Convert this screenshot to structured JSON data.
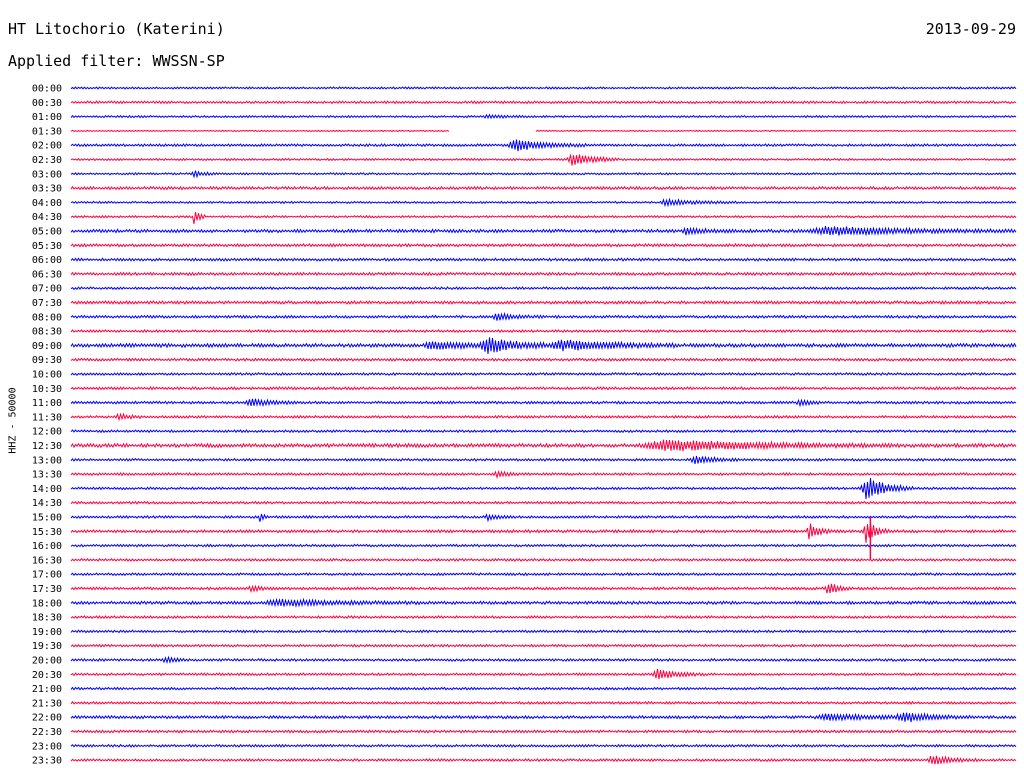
{
  "header": {
    "station": "HT Litochorio (Katerini)",
    "date": "2013-09-29",
    "filter": "Applied filter: WWSSN-SP"
  },
  "chart_data": {
    "type": "line",
    "title": "HT Litochorio (Katerini)",
    "ylabel": "HHZ - 50000",
    "xlabel": "",
    "colors": [
      "#0000ff",
      "#ff0040"
    ],
    "rows": [
      {
        "label": "00:00",
        "base": 1.0,
        "events": []
      },
      {
        "label": "00:30",
        "base": 1.2,
        "events": []
      },
      {
        "label": "01:00",
        "base": 1.0,
        "events": [
          {
            "t": 0.44,
            "amp": 1.5,
            "dur": 0.02
          }
        ]
      },
      {
        "label": "01:30",
        "base": 0.6,
        "events": [],
        "gaps": [
          [
            0.4,
            0.49
          ]
        ]
      },
      {
        "label": "02:00",
        "base": 1.2,
        "events": [
          {
            "t": 0.47,
            "amp": 6,
            "dur": 0.03
          }
        ]
      },
      {
        "label": "02:30",
        "base": 1.0,
        "events": [
          {
            "t": 0.53,
            "amp": 7,
            "dur": 0.02
          }
        ]
      },
      {
        "label": "03:00",
        "base": 1.0,
        "events": [
          {
            "t": 0.13,
            "amp": 3,
            "dur": 0.01
          }
        ]
      },
      {
        "label": "03:30",
        "base": 1.4,
        "events": []
      },
      {
        "label": "04:00",
        "base": 1.0,
        "events": [
          {
            "t": 0.63,
            "amp": 3,
            "dur": 0.03
          }
        ]
      },
      {
        "label": "04:30",
        "base": 1.0,
        "events": [
          {
            "t": 0.13,
            "amp": 9,
            "dur": 0.005
          }
        ]
      },
      {
        "label": "05:00",
        "base": 1.6,
        "events": [
          {
            "t": 0.65,
            "amp": 3,
            "dur": 0.02
          },
          {
            "t": 0.8,
            "amp": 4,
            "dur": 0.08
          }
        ]
      },
      {
        "label": "05:30",
        "base": 1.4,
        "events": []
      },
      {
        "label": "06:00",
        "base": 1.3,
        "events": []
      },
      {
        "label": "06:30",
        "base": 1.4,
        "events": []
      },
      {
        "label": "07:00",
        "base": 1.2,
        "events": []
      },
      {
        "label": "07:30",
        "base": 1.5,
        "events": []
      },
      {
        "label": "08:00",
        "base": 1.3,
        "events": [
          {
            "t": 0.45,
            "amp": 3,
            "dur": 0.02
          }
        ]
      },
      {
        "label": "08:30",
        "base": 1.2,
        "events": []
      },
      {
        "label": "09:00",
        "base": 1.8,
        "events": [
          {
            "t": 0.38,
            "amp": 4,
            "dur": 0.03
          },
          {
            "t": 0.44,
            "amp": 8,
            "dur": 0.03
          },
          {
            "t": 0.52,
            "amp": 5,
            "dur": 0.05
          }
        ]
      },
      {
        "label": "09:30",
        "base": 1.3,
        "events": []
      },
      {
        "label": "10:00",
        "base": 1.2,
        "events": []
      },
      {
        "label": "10:30",
        "base": 1.3,
        "events": []
      },
      {
        "label": "11:00",
        "base": 1.3,
        "events": [
          {
            "t": 0.19,
            "amp": 4,
            "dur": 0.02
          },
          {
            "t": 0.77,
            "amp": 3,
            "dur": 0.01
          }
        ]
      },
      {
        "label": "11:30",
        "base": 1.2,
        "events": [
          {
            "t": 0.05,
            "amp": 3,
            "dur": 0.01
          }
        ]
      },
      {
        "label": "12:00",
        "base": 1.2,
        "events": []
      },
      {
        "label": "12:30",
        "base": 1.8,
        "events": [
          {
            "t": 0.63,
            "amp": 5,
            "dur": 0.1
          }
        ]
      },
      {
        "label": "13:00",
        "base": 1.2,
        "events": [
          {
            "t": 0.66,
            "amp": 4,
            "dur": 0.02
          }
        ]
      },
      {
        "label": "13:30",
        "base": 1.2,
        "events": [
          {
            "t": 0.45,
            "amp": 3,
            "dur": 0.01
          }
        ]
      },
      {
        "label": "14:00",
        "base": 1.2,
        "events": [
          {
            "t": 0.84,
            "amp": 12,
            "dur": 0.02
          }
        ]
      },
      {
        "label": "14:30",
        "base": 1.2,
        "events": []
      },
      {
        "label": "15:00",
        "base": 1.2,
        "events": [
          {
            "t": 0.2,
            "amp": 6,
            "dur": 0.003
          },
          {
            "t": 0.44,
            "amp": 3,
            "dur": 0.01
          }
        ]
      },
      {
        "label": "15:30",
        "base": 1.4,
        "events": [
          {
            "t": 0.78,
            "amp": 8,
            "dur": 0.01
          },
          {
            "t": 0.84,
            "amp": 12,
            "dur": 0.01
          }
        ]
      },
      {
        "label": "16:00",
        "base": 1.2,
        "events": []
      },
      {
        "label": "16:30",
        "base": 1.2,
        "events": []
      },
      {
        "label": "17:00",
        "base": 1.2,
        "events": []
      },
      {
        "label": "17:30",
        "base": 1.3,
        "events": [
          {
            "t": 0.19,
            "amp": 3,
            "dur": 0.01
          },
          {
            "t": 0.8,
            "amp": 6,
            "dur": 0.01
          }
        ]
      },
      {
        "label": "18:00",
        "base": 1.5,
        "events": [
          {
            "t": 0.22,
            "amp": 3,
            "dur": 0.06
          }
        ]
      },
      {
        "label": "18:30",
        "base": 1.2,
        "events": []
      },
      {
        "label": "19:00",
        "base": 1.2,
        "events": []
      },
      {
        "label": "19:30",
        "base": 1.2,
        "events": []
      },
      {
        "label": "20:00",
        "base": 1.2,
        "events": [
          {
            "t": 0.1,
            "amp": 3,
            "dur": 0.01
          }
        ]
      },
      {
        "label": "20:30",
        "base": 1.2,
        "events": [
          {
            "t": 0.62,
            "amp": 5,
            "dur": 0.02
          }
        ]
      },
      {
        "label": "21:00",
        "base": 1.2,
        "events": []
      },
      {
        "label": "21:30",
        "base": 1.2,
        "events": []
      },
      {
        "label": "22:00",
        "base": 1.4,
        "events": [
          {
            "t": 0.8,
            "amp": 3,
            "dur": 0.05
          },
          {
            "t": 0.88,
            "amp": 4,
            "dur": 0.03
          }
        ]
      },
      {
        "label": "22:30",
        "base": 1.3,
        "events": []
      },
      {
        "label": "23:00",
        "base": 1.2,
        "events": []
      },
      {
        "label": "23:30",
        "base": 1.2,
        "events": [
          {
            "t": 0.91,
            "amp": 5,
            "dur": 0.02
          }
        ]
      }
    ],
    "spikes": [
      {
        "from_row": "15:30",
        "to_row": "16:30",
        "t": 0.845
      }
    ]
  }
}
